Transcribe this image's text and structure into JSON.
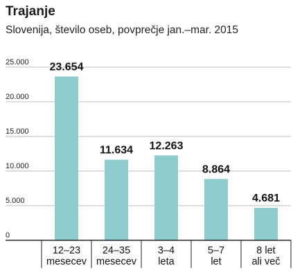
{
  "chart_data": {
    "type": "bar",
    "title": "Trajanje",
    "subtitle": "Slovenija, število oseb, povprečje jan.–mar. 2015",
    "categories": [
      [
        "12–23",
        "mesecev"
      ],
      [
        "24–35",
        "mesecev"
      ],
      [
        "3–4",
        "leta"
      ],
      [
        "5–7",
        "let"
      ],
      [
        "8 let",
        "ali več"
      ]
    ],
    "values": [
      23654,
      11634,
      12263,
      8864,
      4681
    ],
    "data_labels": [
      "23.654",
      "11.634",
      "12.263",
      "8.864",
      "4.681"
    ],
    "yticks": [
      0,
      5000,
      10000,
      15000,
      20000,
      25000
    ],
    "ytick_labels": [
      "0",
      "5.000",
      "10.000",
      "15.000",
      "20.000",
      "25.000"
    ],
    "ylim": [
      0,
      25000
    ],
    "grid": true,
    "colors": {
      "bar": "#8ecbcf",
      "grid": "#b8b8b8",
      "axis": "#222222"
    }
  }
}
